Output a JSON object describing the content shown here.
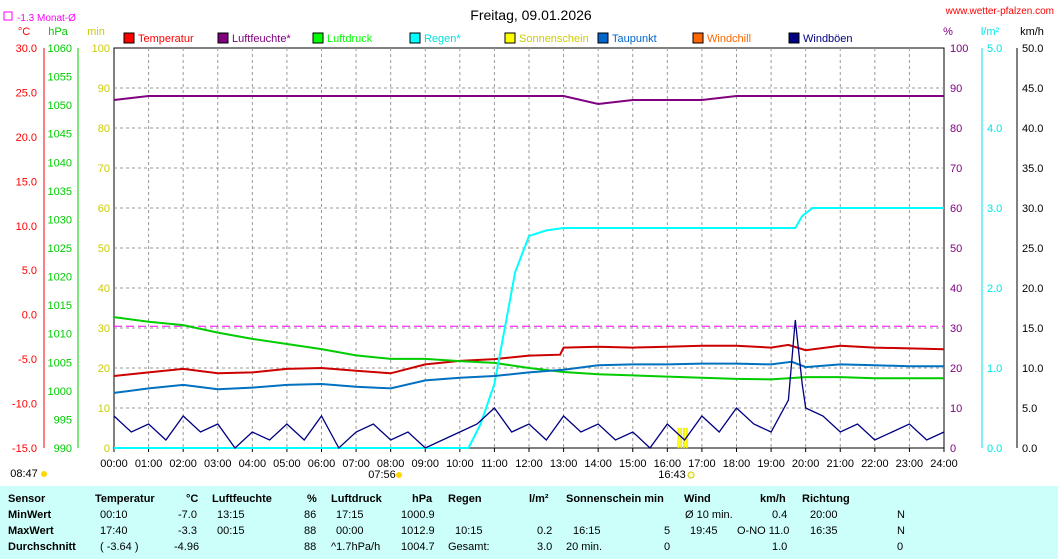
{
  "header": {
    "title": "Freitag, 09.01.2026",
    "site": "www.wetter-pfalzen.com",
    "monthly_avg_label": "-1.3 Monat-Ø"
  },
  "axes": {
    "temp": {
      "unit": "°C",
      "ticks": [
        "30.0",
        "25.0",
        "20.0",
        "15.0",
        "10.0",
        "5.0",
        "0.0",
        "-5.0",
        "-10.0",
        "-15.0"
      ],
      "min": -15,
      "max": 30,
      "color": "#ff0000"
    },
    "pressure": {
      "unit": "hPa",
      "ticks": [
        "1060",
        "1055",
        "1050",
        "1045",
        "1040",
        "1035",
        "1030",
        "1025",
        "1020",
        "1015",
        "1010",
        "1005",
        "1000",
        "995",
        "990"
      ],
      "min": 990,
      "max": 1060,
      "color": "#00cc00"
    },
    "sun": {
      "unit": "min",
      "ticks": [
        "100",
        "90",
        "80",
        "70",
        "60",
        "50",
        "40",
        "30",
        "20",
        "10",
        "0"
      ],
      "min": 0,
      "max": 100,
      "color": "#cccc00"
    },
    "humidity": {
      "unit": "%",
      "ticks": [
        "100",
        "90",
        "80",
        "70",
        "60",
        "50",
        "40",
        "30",
        "20",
        "10",
        "0"
      ],
      "min": 0,
      "max": 100,
      "color": "#800080"
    },
    "rain": {
      "unit": "l/m²",
      "ticks": [
        "5.0",
        "4.0",
        "3.0",
        "2.0",
        "1.0",
        "0.0"
      ],
      "min": 0,
      "max": 5,
      "color": "#00e5e5"
    },
    "wind": {
      "unit": "km/h",
      "ticks": [
        "50.0",
        "45.0",
        "40.0",
        "35.0",
        "30.0",
        "25.0",
        "20.0",
        "15.0",
        "10.0",
        "5.0",
        "0.0"
      ],
      "min": 0,
      "max": 50,
      "color": "#000000"
    },
    "x_ticks": [
      "00:00",
      "01:00",
      "02:00",
      "03:00",
      "04:00",
      "05:00",
      "06:00",
      "07:00",
      "08:00",
      "09:00",
      "10:00",
      "11:00",
      "12:00",
      "13:00",
      "14:00",
      "15:00",
      "16:00",
      "17:00",
      "18:00",
      "19:00",
      "20:00",
      "21:00",
      "22:00",
      "23:00",
      "24:00"
    ],
    "sunrise": "07:56",
    "sunset": "16:43",
    "day_start": "08:47"
  },
  "chart_data": {
    "type": "line",
    "x_unit": "hours",
    "legend": [
      {
        "name": "Temperatur",
        "color": "#ff0000"
      },
      {
        "name": "Luftfeuchte*",
        "color": "#800080"
      },
      {
        "name": "Luftdruck",
        "color": "#00ff00"
      },
      {
        "name": "Regen*",
        "color": "#00ffff"
      },
      {
        "name": "Sonnenschein",
        "color": "#ffff00"
      },
      {
        "name": "Taupunkt",
        "color": "#0066cc"
      },
      {
        "name": "Windchill",
        "color": "#ff6600"
      },
      {
        "name": "Windböen",
        "color": "#000080"
      }
    ],
    "monthly_avg_temp": -1.3,
    "series": [
      {
        "name": "Temperatur",
        "axis": "temp",
        "color": "#cc0000",
        "x": [
          0,
          1,
          2,
          3,
          4,
          5,
          6,
          7,
          8,
          9,
          10,
          11,
          12,
          12.9,
          13,
          14,
          15,
          16,
          17,
          18,
          19,
          19.5,
          20,
          21,
          22,
          23,
          24
        ],
        "y": [
          -6.9,
          -6.5,
          -6.1,
          -6.6,
          -6.5,
          -6.1,
          -6.0,
          -6.3,
          -6.6,
          -5.6,
          -5.2,
          -5.0,
          -4.6,
          -4.5,
          -3.7,
          -3.6,
          -3.7,
          -3.6,
          -3.5,
          -3.5,
          -3.7,
          -3.4,
          -4.0,
          -3.5,
          -3.7,
          -3.8,
          -3.9
        ]
      },
      {
        "name": "Luftfeuchte*",
        "axis": "humidity",
        "color": "#800080",
        "x": [
          0,
          1,
          2,
          3,
          4,
          5,
          6,
          7,
          8,
          9,
          10,
          11,
          12,
          13,
          14,
          15,
          16,
          17,
          18,
          19,
          20,
          21,
          22,
          23,
          24
        ],
        "y": [
          87,
          88,
          88,
          88,
          88,
          88,
          88,
          88,
          88,
          88,
          88,
          88,
          88,
          88,
          86,
          87,
          87,
          87,
          88,
          88,
          88,
          88,
          88,
          88,
          88
        ]
      },
      {
        "name": "Luftdruck",
        "axis": "pressure",
        "color": "#00cc00",
        "x": [
          0,
          1,
          2,
          3,
          4,
          5,
          6,
          7,
          8,
          9,
          10,
          11,
          12,
          13,
          14,
          15,
          16,
          17,
          18,
          19,
          20,
          21,
          22,
          23,
          24
        ],
        "y": [
          1012.9,
          1012.1,
          1011.5,
          1010.2,
          1009.1,
          1008.2,
          1007.3,
          1006.2,
          1005.6,
          1005.6,
          1005.2,
          1004.9,
          1004.0,
          1003.3,
          1002.9,
          1002.7,
          1002.5,
          1002.3,
          1002.1,
          1002.0,
          1002.4,
          1002.4,
          1002.2,
          1002.2,
          1002.2
        ]
      },
      {
        "name": "Regen*",
        "axis": "rain",
        "color": "#00ffff",
        "x": [
          0,
          10.25,
          10.6,
          11,
          11.3,
          11.6,
          12,
          12.5,
          13,
          14,
          15,
          16,
          17,
          18,
          19,
          19.7,
          19.9,
          20.2,
          21,
          22,
          23,
          24
        ],
        "y": [
          0,
          0,
          0.3,
          0.8,
          1.5,
          2.2,
          2.65,
          2.72,
          2.75,
          2.75,
          2.75,
          2.75,
          2.75,
          2.75,
          2.75,
          2.75,
          2.9,
          3.0,
          3.0,
          3.0,
          3.0,
          3.0
        ]
      },
      {
        "name": "Taupunkt",
        "axis": "temp",
        "color": "#0070c0",
        "x": [
          0,
          1,
          2,
          3,
          4,
          5,
          6,
          7,
          8,
          9,
          10,
          11,
          12,
          13,
          14,
          15,
          16,
          17,
          18,
          19,
          19.6,
          20,
          21,
          22,
          23,
          24
        ],
        "y": [
          -8.8,
          -8.3,
          -7.9,
          -8.4,
          -8.2,
          -7.9,
          -7.8,
          -8.1,
          -8.3,
          -7.4,
          -7.1,
          -6.9,
          -6.5,
          -6.2,
          -5.7,
          -5.6,
          -5.6,
          -5.5,
          -5.5,
          -5.6,
          -5.3,
          -5.9,
          -5.6,
          -5.7,
          -5.8,
          -5.8
        ]
      },
      {
        "name": "Windböen",
        "axis": "wind",
        "color": "#000080",
        "x": [
          0,
          0.5,
          1,
          1.5,
          2,
          2.5,
          3,
          3.5,
          4,
          4.5,
          5,
          5.5,
          6,
          6.5,
          7,
          7.5,
          8,
          8.5,
          9,
          9.5,
          10,
          10.5,
          11,
          11.5,
          12,
          12.5,
          13,
          13.5,
          14,
          14.5,
          15,
          15.5,
          16,
          16.5,
          17,
          17.5,
          18,
          18.5,
          19,
          19.5,
          19.7,
          19.9,
          20,
          20.5,
          21,
          21.5,
          22,
          22.5,
          23,
          23.5,
          24
        ],
        "y": [
          4,
          2,
          3,
          1,
          4,
          2,
          3,
          0,
          2,
          1,
          3,
          1,
          4,
          0,
          2,
          3,
          1,
          2,
          0,
          1,
          2,
          3,
          5,
          2,
          3,
          1,
          4,
          2,
          3,
          1,
          2,
          0,
          3,
          1,
          4,
          2,
          5,
          3,
          2,
          6,
          16,
          8,
          5,
          4,
          2,
          3,
          1,
          2,
          3,
          1,
          2
        ]
      }
    ]
  },
  "table": {
    "headers": {
      "sensor": "Sensor",
      "temperature": "Temperatur",
      "temp_unit": "°C",
      "humidity": "Luftfeuchte",
      "hum_unit": "%",
      "pressure": "Luftdruck",
      "press_unit": "hPa",
      "rain": "Regen",
      "rain_unit": "l/m²",
      "sun": "Sonnenschein min",
      "wind": "Wind",
      "wind_unit": "km/h",
      "direction": "Richtung"
    },
    "rows": [
      {
        "label": "MinWert",
        "t_time": "00:10",
        "t_val": "-7.0",
        "h_time": "13:15",
        "h_val": "86",
        "p_time": "17:15",
        "p_val": "1000.9",
        "r_time": "",
        "r_val": "",
        "s_time": "",
        "s_val": "",
        "w_time": "Ø 10 min.",
        "w_val": "0.4",
        "d_time": "20:00",
        "d_val": "N"
      },
      {
        "label": "MaxWert",
        "t_time": "17:40",
        "t_val": "-3.3",
        "h_time": "00:15",
        "h_val": "88",
        "p_time": "00:00",
        "p_val": "1012.9",
        "r_time": "10:15",
        "r_val": "0.2",
        "s_time": "16:15",
        "s_val": "5",
        "w_time": "19:45",
        "w_val": "O-NO 11.0",
        "d_time": "16:35",
        "d_val": "N"
      },
      {
        "label": "Durchschnitt",
        "t_time": "( -3.64 )",
        "t_val": "-4.96",
        "h_time": "",
        "h_val": "88",
        "p_time": "^1.7hPa/h",
        "p_val": "1004.7",
        "r_time": "Gesamt:",
        "r_val": "3.0",
        "s_time": "20 min.",
        "s_val": "0",
        "w_time": "",
        "w_val": "1.0",
        "d_time": "",
        "d_val": "0"
      }
    ]
  }
}
